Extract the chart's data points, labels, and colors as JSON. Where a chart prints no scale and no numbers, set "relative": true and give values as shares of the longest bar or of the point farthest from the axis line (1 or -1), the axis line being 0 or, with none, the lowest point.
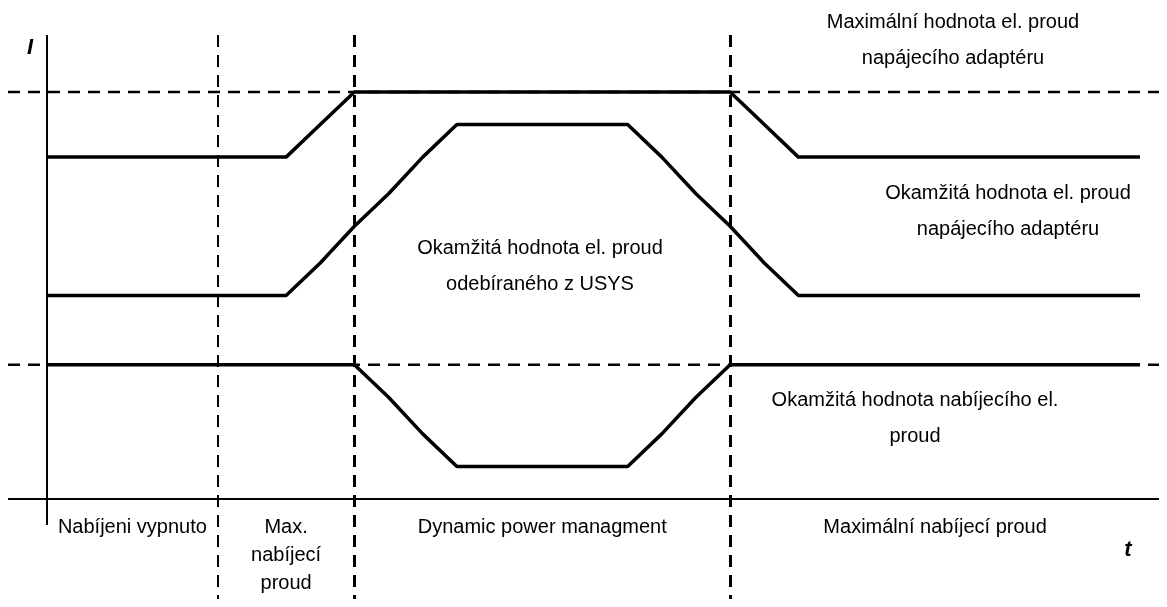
{
  "chart_data": {
    "type": "line",
    "relative": true,
    "xlabel": "t",
    "ylabel": "I",
    "grid": false,
    "legend": false,
    "marker": "none",
    "line_style": "solid",
    "categories": [
      null,
      null,
      null,
      null,
      null,
      null,
      null,
      null,
      null,
      null,
      null,
      null,
      null,
      null,
      null,
      null,
      null,
      null,
      null,
      null,
      null,
      null,
      null,
      null,
      null,
      null,
      null,
      null,
      null,
      null,
      null,
      null,
      null
    ],
    "series": [
      {
        "name": "Okamžitá hodnota el. proud napájecího adaptéru",
        "color": "#000000",
        "values": [
          0.84,
          0.84,
          0.84,
          0.84,
          0.84,
          0.84,
          0.84,
          0.84,
          0.92,
          1,
          1,
          1,
          1,
          1,
          1,
          1,
          1,
          1,
          1,
          1,
          1,
          0.92,
          0.84,
          0.84,
          0.84,
          0.84,
          0.84,
          0.84,
          0.84,
          0.84,
          0.84,
          0.84,
          0.84
        ]
      },
      {
        "name": "Okamžitá hodnota el. proud odebíraného z USYS",
        "color": "#000000",
        "values": [
          0.5,
          0.5,
          0.5,
          0.5,
          0.5,
          0.5,
          0.5,
          0.5,
          0.58,
          0.67,
          0.75,
          0.84,
          0.92,
          0.92,
          0.92,
          0.92,
          0.92,
          0.92,
          0.84,
          0.75,
          0.67,
          0.58,
          0.5,
          0.5,
          0.5,
          0.5,
          0.5,
          0.5,
          0.5,
          0.5,
          0.5,
          0.5,
          0.5
        ]
      },
      {
        "name": "Okamžitá hodnota nabíjecího el. proud",
        "color": "#000000",
        "values": [
          0.33,
          0.33,
          0.33,
          0.33,
          0.33,
          0.33,
          0.33,
          0.33,
          0.33,
          0.33,
          0.25,
          0.16,
          0.08,
          0.08,
          0.08,
          0.08,
          0.08,
          0.08,
          0.16,
          0.25,
          0.33,
          0.33,
          0.33,
          0.33,
          0.33,
          0.33,
          0.33,
          0.33,
          0.33,
          0.33,
          0.33,
          0.33,
          0.33
        ]
      }
    ],
    "ref_lines": [
      {
        "axis": "y",
        "value": 1,
        "label": "Maximální hodnota el. proud napájecího adaptéru",
        "line_style": "dashed"
      },
      {
        "axis": "y",
        "value": 0.33,
        "label": null,
        "line_style": "dashed"
      }
    ],
    "annotations": [
      "Nabíjeni vypnuto",
      "Max. nabíjecí proud",
      "Dynamic power managment",
      "Maximální nabíjecí proud"
    ]
  }
}
